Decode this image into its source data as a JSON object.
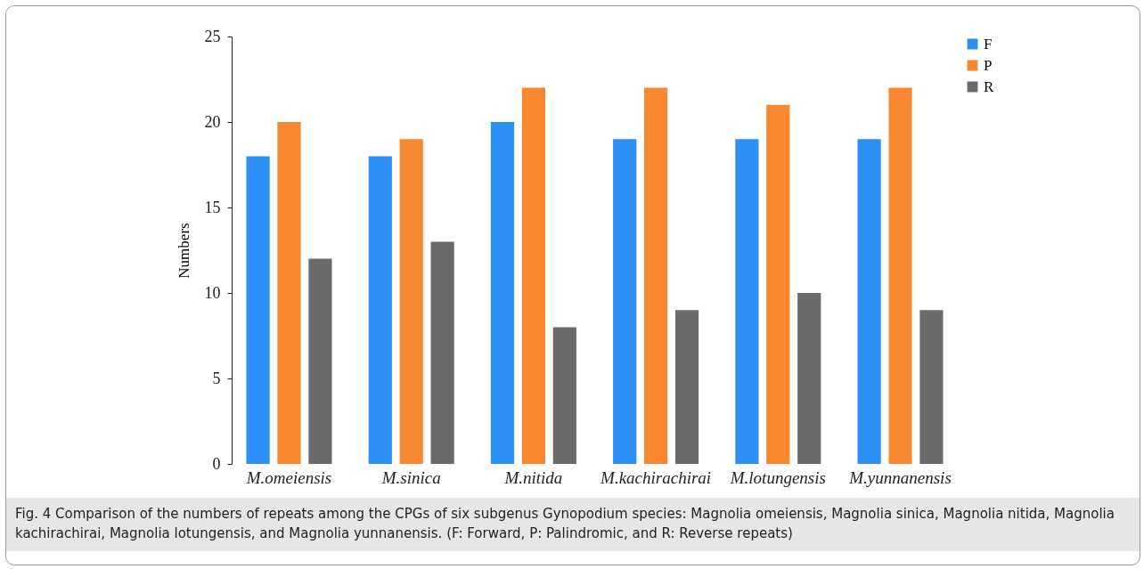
{
  "chart_data": {
    "type": "bar",
    "ylabel": "Numbers",
    "categories": [
      "M.omeiensis",
      "M.sinica",
      "M.nitida",
      "M.kachirachirai",
      "M.lotungensis",
      "M.yunnanensis"
    ],
    "series": [
      {
        "name": "F",
        "color": "#2b8ff5",
        "values": [
          18,
          18,
          20,
          19,
          19,
          19
        ]
      },
      {
        "name": "P",
        "color": "#f7882f",
        "values": [
          20,
          19,
          22,
          22,
          21,
          22
        ]
      },
      {
        "name": "R",
        "color": "#6b6b6b",
        "values": [
          12,
          13,
          8,
          9,
          10,
          9
        ]
      }
    ],
    "ylim": [
      0,
      25
    ],
    "yticks": [
      0,
      5,
      10,
      15,
      20,
      25
    ],
    "legend": "right",
    "annotations": [
      "Fig. 4  Comparison of the numbers of repeats among the CPGs of six subgenus Gynopodium species: Magnolia omeiensis, Magnolia sinica, Magnolia nitida, Magnolia kachirachirai, Magnolia lotungensis, and Magnolia yunnanensis. (F: Forward, P: Palindromic, and R: Reverse repeats)"
    ]
  }
}
